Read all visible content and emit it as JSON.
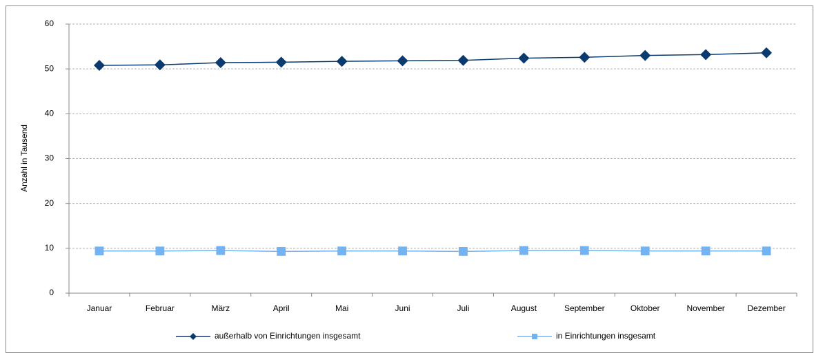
{
  "chart_data": {
    "type": "line",
    "y_label": "Anzahl in Tausend",
    "categories": [
      "Januar",
      "Februar",
      "März",
      "April",
      "Mai",
      "Juni",
      "Juli",
      "August",
      "September",
      "Oktober",
      "November",
      "Dezember"
    ],
    "series": [
      {
        "name": "außerhalb von Einrichtungen insgesamt",
        "color": "#0a3a6e",
        "marker": "diamond",
        "values": [
          50.8,
          50.9,
          51.4,
          51.5,
          51.7,
          51.8,
          51.9,
          52.4,
          52.6,
          53.0,
          53.2,
          53.6
        ]
      },
      {
        "name": "in Einrichtungen insgesamt",
        "color": "#74b3f2",
        "marker": "square",
        "values": [
          9.4,
          9.4,
          9.5,
          9.3,
          9.4,
          9.4,
          9.3,
          9.5,
          9.5,
          9.4,
          9.4,
          9.4
        ]
      }
    ],
    "ylim": [
      0,
      60
    ],
    "yticks": [
      0,
      10,
      20,
      30,
      40,
      50,
      60
    ],
    "grid": true,
    "legend": "bottom"
  }
}
